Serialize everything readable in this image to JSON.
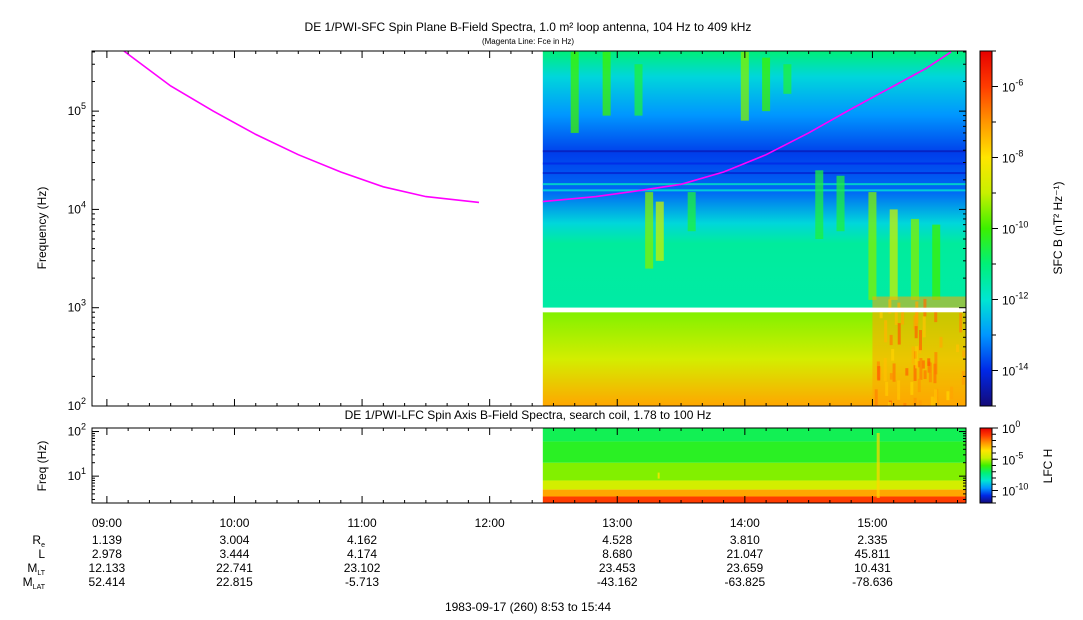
{
  "titles": {
    "main": "DE 1/PWI-SFC  Spin Plane B-Field Spectra, 1.0 m² loop antenna, 104 Hz to 409 kHz",
    "subtitle": "(Magenta Line: Fce in Hz)",
    "lower": "DE 1/PWI-LFC  Spin Axis B-Field Spectra, search coil, 1.78 to 100 Hz",
    "footer": "1983-09-17 (260) 8:53 to 15:44"
  },
  "colors": {
    "fce_line": "#ff00ff",
    "colormap": [
      "#140a78",
      "#0028e6",
      "#0096ff",
      "#00e6d2",
      "#00f078",
      "#3cf000",
      "#c8f000",
      "#ffe600",
      "#ff9600",
      "#ff3c00",
      "#e60000"
    ]
  },
  "chart_data": [
    {
      "type": "heatmap",
      "name": "SFC",
      "xlabel": "",
      "ylabel": "Frequency (Hz)",
      "yscale": "log",
      "ylim": [
        100,
        409000
      ],
      "xlim": [
        "08:53",
        "15:44"
      ],
      "yticks": [
        {
          "value": 100,
          "base": "10",
          "exp": "2"
        },
        {
          "value": 1000,
          "base": "10",
          "exp": "3"
        },
        {
          "value": 10000,
          "base": "10",
          "exp": "4"
        },
        {
          "value": 100000,
          "base": "10",
          "exp": "5"
        }
      ],
      "data_start": "12:25",
      "data_gap_hz": [
        900,
        1000
      ],
      "colorbar": {
        "label": "SFC B (nT² Hz⁻¹)",
        "scale": "log",
        "range": [
          1e-15,
          1e-05
        ],
        "ticks": [
          {
            "value": 1e-06,
            "base": "10",
            "exp": "-6"
          },
          {
            "value": 1e-08,
            "base": "10",
            "exp": "-8"
          },
          {
            "value": 1e-10,
            "base": "10",
            "exp": "-10"
          },
          {
            "value": 1e-12,
            "base": "10",
            "exp": "-12"
          },
          {
            "value": 1e-14,
            "base": "10",
            "exp": "-14"
          }
        ]
      },
      "fce_series": {
        "name": "Fce",
        "segments": [
          [
            [
              "09:08",
              409000
            ],
            [
              "09:30",
              180000
            ],
            [
              "09:50",
              100000
            ],
            [
              "10:10",
              58000
            ],
            [
              "10:30",
              36000
            ],
            [
              "10:50",
              24000
            ],
            [
              "11:10",
              17000
            ],
            [
              "11:30",
              13500
            ],
            [
              "11:55",
              11800
            ]
          ],
          [
            [
              "12:25",
              12000
            ],
            [
              "12:50",
              13500
            ],
            [
              "13:10",
              15500
            ],
            [
              "13:30",
              18000
            ],
            [
              "13:50",
              24000
            ],
            [
              "14:10",
              36000
            ],
            [
              "14:30",
              60000
            ],
            [
              "14:50",
              105000
            ],
            [
              "15:10",
              180000
            ],
            [
              "15:25",
              270000
            ],
            [
              "15:37",
              400000
            ]
          ]
        ]
      }
    },
    {
      "type": "heatmap",
      "name": "LFC",
      "ylabel": "Freq (Hz)",
      "yscale": "log",
      "ylim": [
        2.5,
        120
      ],
      "yticks": [
        {
          "value": 10,
          "base": "10",
          "exp": "1"
        },
        {
          "value": 100,
          "base": "10",
          "exp": "2"
        }
      ],
      "data_start": "12:25",
      "bands": [
        {
          "f_low": 2.5,
          "f_high": 3.5,
          "level_frac": 0.9
        },
        {
          "f_low": 3.5,
          "f_high": 5.0,
          "level_frac": 0.78
        },
        {
          "f_low": 5.0,
          "f_high": 8.0,
          "level_frac": 0.62
        },
        {
          "f_low": 8.0,
          "f_high": 20,
          "level_frac": 0.55
        },
        {
          "f_low": 20,
          "f_high": 60,
          "level_frac": 0.47
        },
        {
          "f_low": 60,
          "f_high": 120,
          "level_frac": 0.43
        }
      ],
      "colorbar": {
        "label": "LFC H",
        "scale": "log",
        "range": [
          1e-12,
          1
        ],
        "ticks": [
          {
            "value": 1,
            "base": "10",
            "exp": "0"
          },
          {
            "value": 1e-05,
            "base": "10",
            "exp": "-5"
          },
          {
            "value": 1e-10,
            "base": "10",
            "exp": "-10"
          }
        ]
      }
    }
  ],
  "time_axis": {
    "ticks": [
      "09:00",
      "10:00",
      "11:00",
      "12:00",
      "13:00",
      "14:00",
      "15:00"
    ]
  },
  "ephemeris": {
    "rows": [
      {
        "label": "R",
        "sub": "e",
        "values": [
          "1.139",
          "3.004",
          "4.162",
          "",
          "4.528",
          "3.810",
          "2.335"
        ]
      },
      {
        "label": "L",
        "sub": "",
        "values": [
          "2.978",
          "3.444",
          "4.174",
          "",
          "8.680",
          "21.047",
          "45.811"
        ]
      },
      {
        "label": "M",
        "sub": "LT",
        "values": [
          "12.133",
          "22.741",
          "23.102",
          "",
          "23.453",
          "23.659",
          "10.431"
        ]
      },
      {
        "label": "M",
        "sub": "LAT",
        "values": [
          "52.414",
          "22.815",
          "-5.713",
          "",
          "-43.162",
          "-63.825",
          "-78.636"
        ]
      }
    ]
  }
}
